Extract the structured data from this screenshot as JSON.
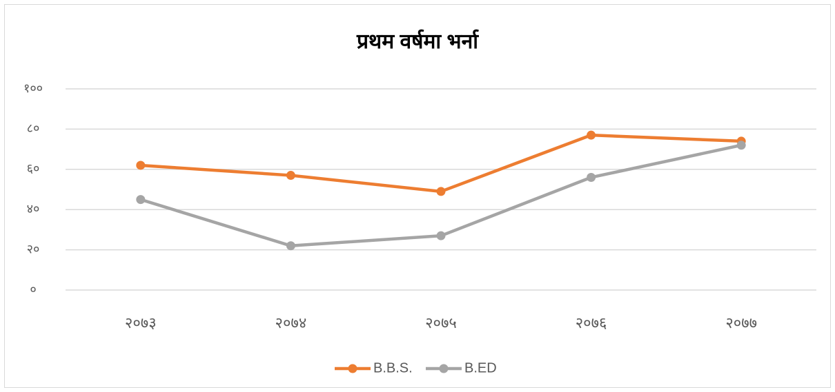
{
  "chart_data": {
    "type": "line",
    "title": "प्रथम वर्षमा भर्ना",
    "categories": [
      "२०७३",
      "२०७४",
      "२०७५",
      "२०७६",
      "२०७७"
    ],
    "series": [
      {
        "name": "B.B.S.",
        "color": "#ed7d31",
        "values": [
          62,
          57,
          49,
          77,
          74
        ]
      },
      {
        "name": "B.ED",
        "color": "#a5a5a5",
        "values": [
          45,
          22,
          27,
          56,
          72
        ]
      }
    ],
    "ylim": [
      0,
      100
    ],
    "yticks": [
      {
        "value": 0,
        "label": "०"
      },
      {
        "value": 20,
        "label": "२०"
      },
      {
        "value": 40,
        "label": "४०"
      },
      {
        "value": 60,
        "label": "६०"
      },
      {
        "value": 80,
        "label": "८०"
      },
      {
        "value": 100,
        "label": "१००"
      }
    ],
    "grid": true,
    "legend": "bottom"
  }
}
